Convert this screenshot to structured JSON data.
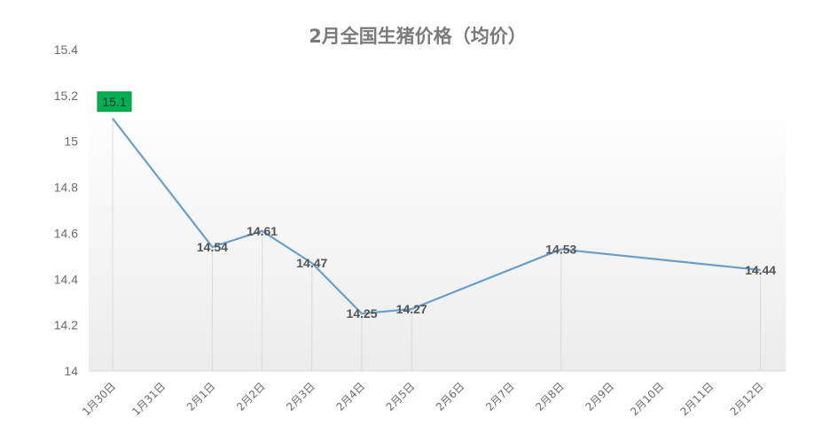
{
  "chart_data": {
    "type": "line",
    "title": "2月全国生猪价格（均价）",
    "xlabel": "",
    "ylabel": "",
    "categories": [
      "1月30日",
      "1月31日",
      "2月1日",
      "2月2日",
      "2月3日",
      "2月4日",
      "2月5日",
      "2月6日",
      "2月7日",
      "2月8日",
      "2月9日",
      "2月10日",
      "2月11日",
      "2月12日"
    ],
    "series": [
      {
        "name": "",
        "values": [
          15.1,
          null,
          14.54,
          14.61,
          14.47,
          14.25,
          14.27,
          null,
          null,
          14.53,
          null,
          null,
          null,
          14.44
        ]
      }
    ],
    "data_labels": [
      "15.1",
      "",
      "14.54",
      "14.61",
      "14.47",
      "14.25",
      "14.27",
      "",
      "",
      "14.53",
      "",
      "",
      "",
      "14.44"
    ],
    "ylim": [
      14,
      15.4
    ],
    "yticks": [
      14,
      14.2,
      14.4,
      14.6,
      14.8,
      15,
      15.2,
      15.4
    ],
    "ytick_labels": [
      "14",
      "14.2",
      "14.4",
      "14.6",
      "14.8",
      "15",
      "15.2",
      "15.4"
    ],
    "grid": false,
    "drop_lines": true,
    "legend": "none",
    "highlight_index": 0,
    "colors": {
      "line": "#6a9fcb",
      "drop_line": "#d9d9d9",
      "axis": "#d9d9d9",
      "plot_gradient_top": "#ffffff",
      "plot_gradient_bottom": "#ececec",
      "highlight_fill": "#00b050",
      "highlight_border": "#0a8a3c",
      "title": "#7a7a7a",
      "tick_text": "#6b6b6b",
      "data_label_text": "#555555"
    }
  }
}
